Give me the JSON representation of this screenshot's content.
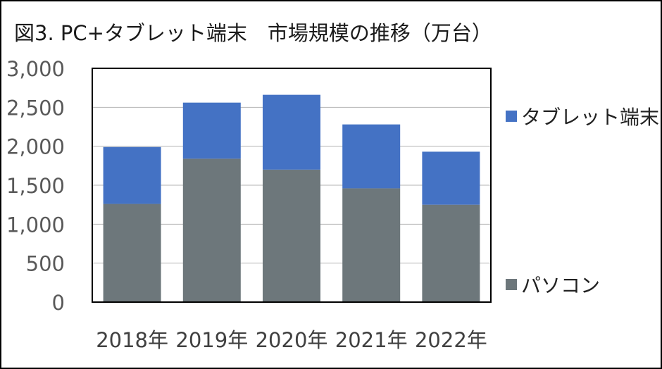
{
  "chart_data": {
    "type": "bar",
    "stacked": true,
    "title": "図3. PC+タブレット端末　市場規模の推移（万台）",
    "categories": [
      "2018年",
      "2019年",
      "2020年",
      "2021年",
      "2022年"
    ],
    "series": [
      {
        "name": "パソコン",
        "color": "#6d777b",
        "values": [
          1260,
          1840,
          1700,
          1460,
          1250
        ]
      },
      {
        "name": "タブレット端末",
        "color": "#4472c4",
        "values": [
          730,
          720,
          960,
          820,
          680
        ]
      }
    ],
    "ylim": [
      0,
      3000
    ],
    "yticks": [
      0,
      500,
      1000,
      1500,
      2000,
      2500,
      3000
    ],
    "ytick_labels": [
      "0",
      "500",
      "1,000",
      "1,500",
      "2,000",
      "2,500",
      "3,000"
    ],
    "grid": true,
    "legend_position": "right",
    "xlabel": "",
    "ylabel": ""
  }
}
